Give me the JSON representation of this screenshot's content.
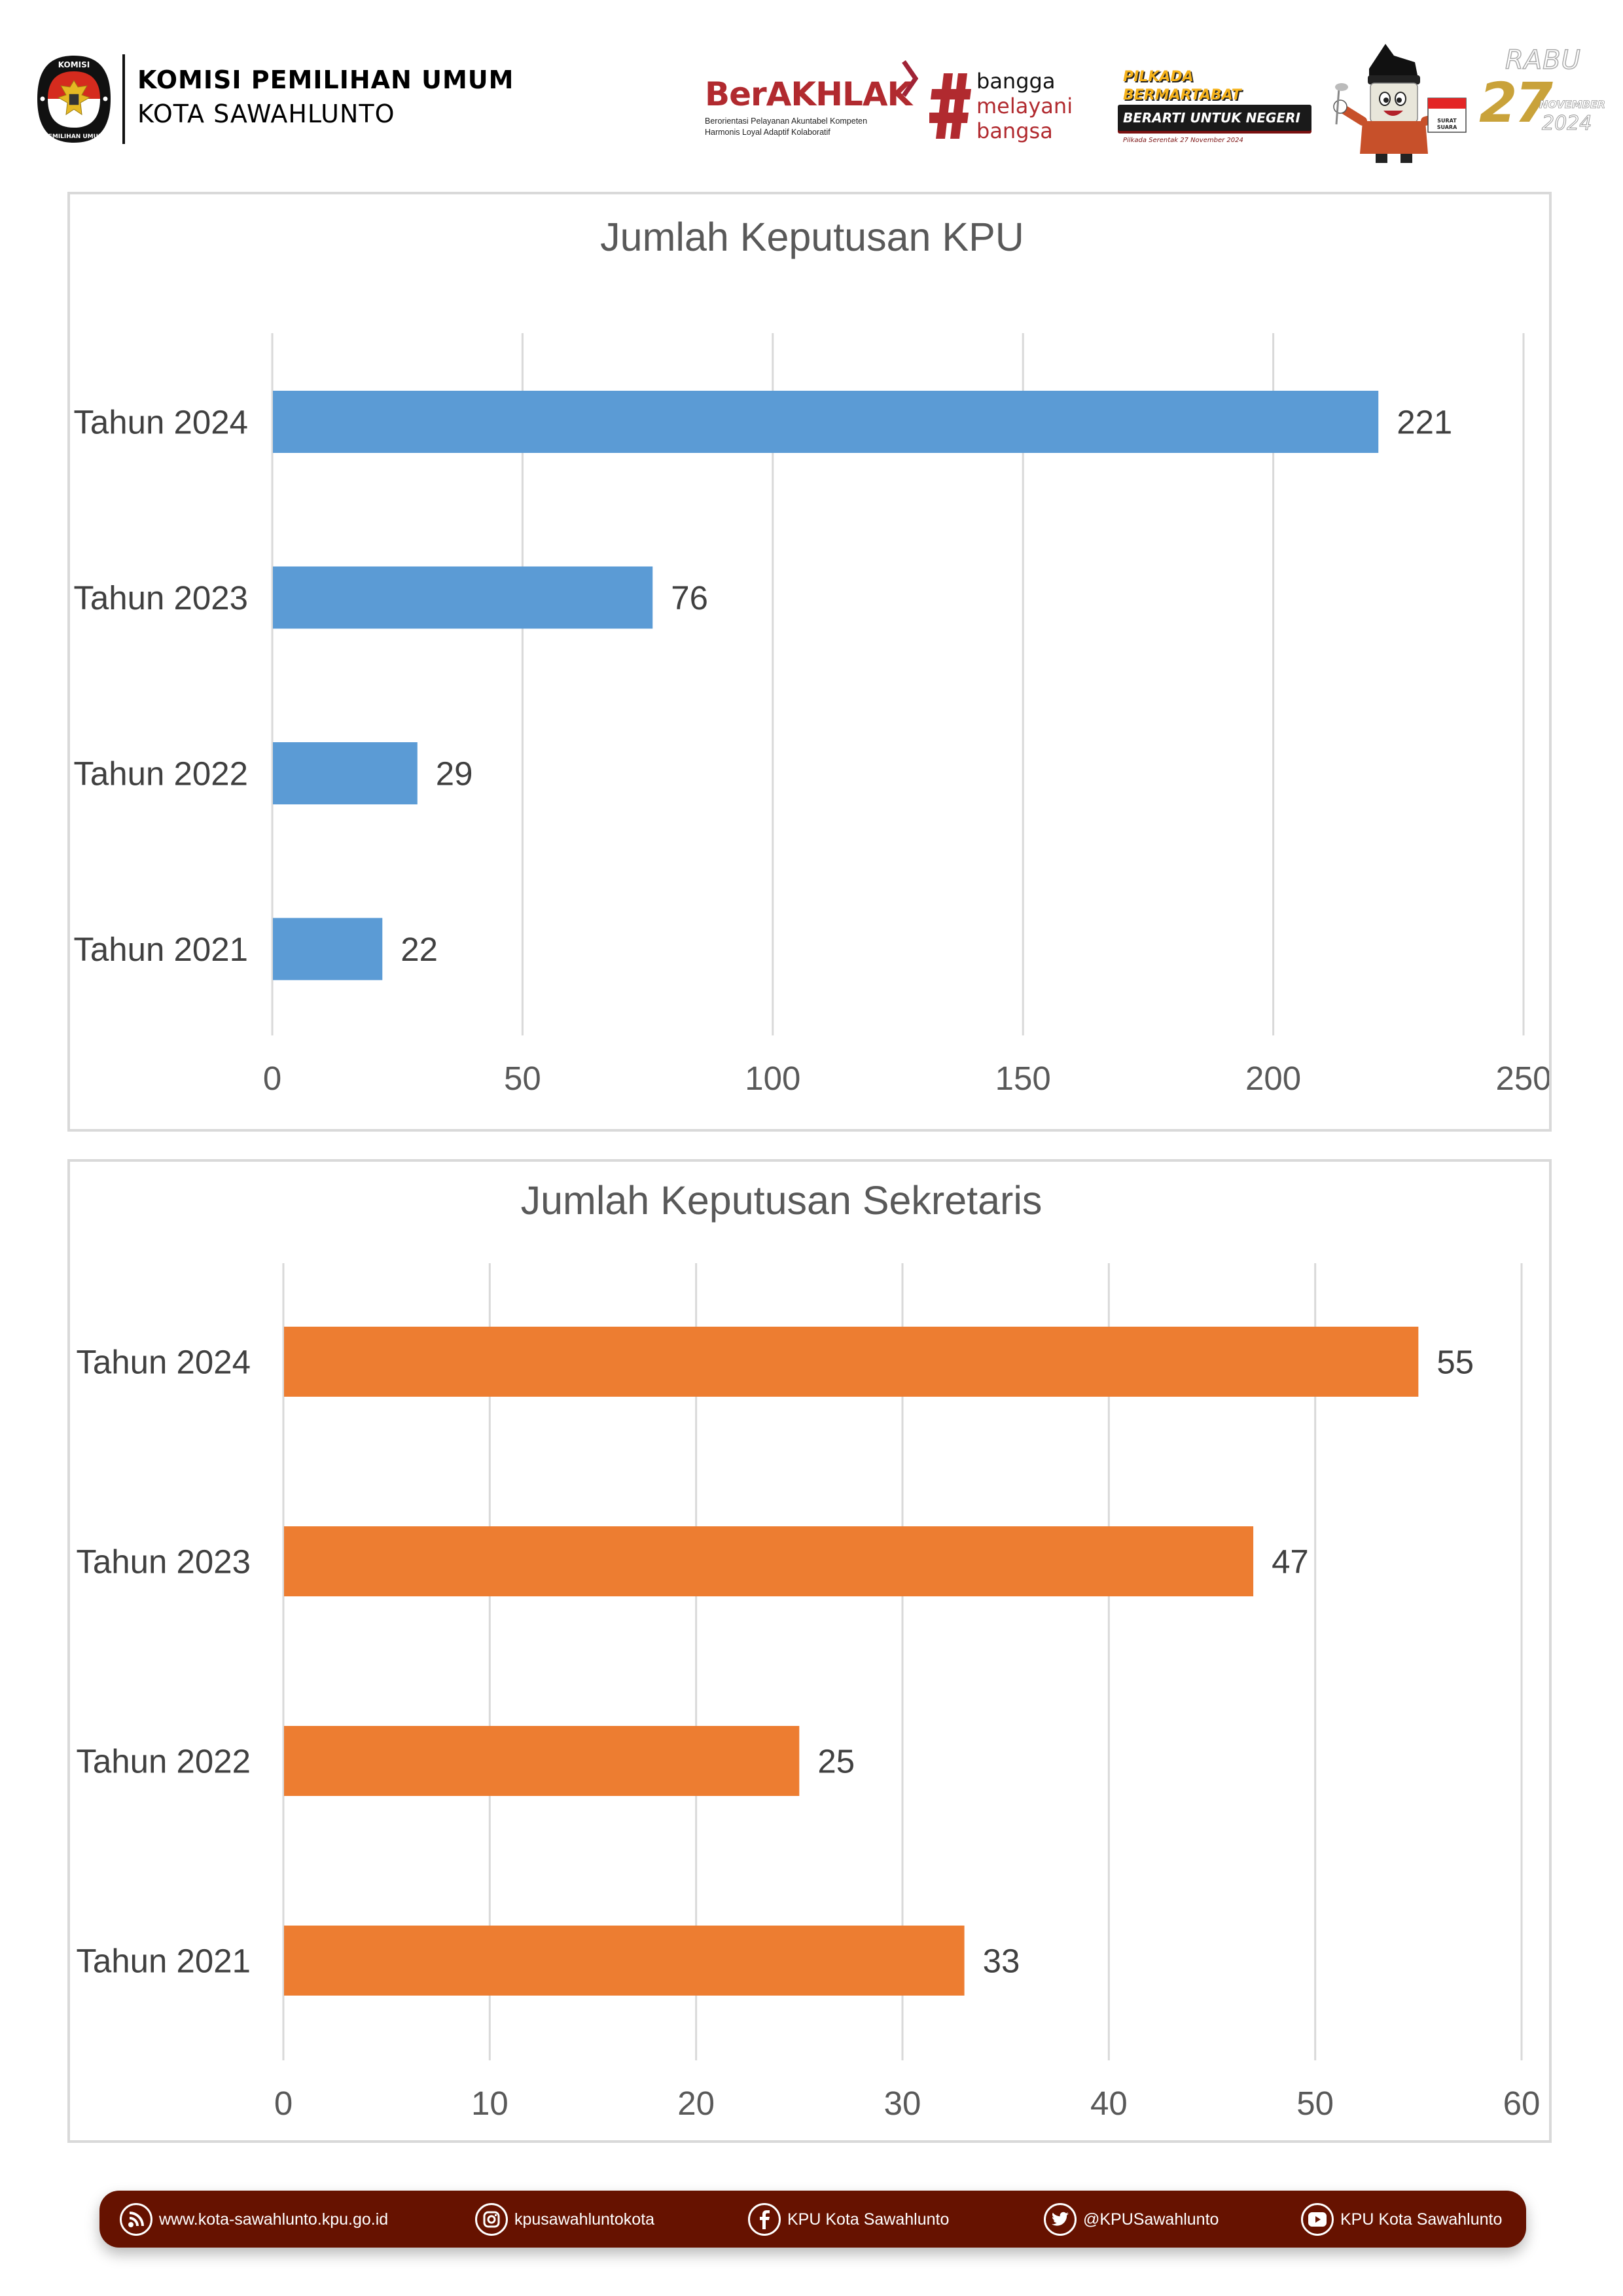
{
  "header": {
    "org_name": "KOMISI PEMILIHAN UMUM",
    "city": "KOTA SAWAHLUNTO",
    "logo": {
      "top_text": "KOMISI",
      "bottom_text": "PEMILIHAN UMUM"
    },
    "berakhlak": {
      "title": "BerAKHLAK",
      "line1": "Berorientasi Pelayanan Akuntabel Kompeten",
      "line2": "Harmonis Loyal Adaptif Kolaboratif"
    },
    "bangga": {
      "hash": "#",
      "word1": "bangga",
      "word2": "melayani",
      "word3": "bangsa"
    },
    "pilkada": {
      "line1": "PILKADA",
      "line2": "BERMARTABAT",
      "line3": "BERARTI UNTUK NEGERI",
      "caption": "Pilkada Serentak 27 November 2024"
    },
    "mascot": {
      "ballot_text": "SURAT SUARA"
    },
    "date_badge": {
      "day": "RABU",
      "date": "27",
      "month": "NOVEMBER",
      "year": "2024"
    }
  },
  "colors": {
    "kpu_bar": "#5B9BD5",
    "sekretaris_bar": "#ED7D31",
    "footer_bg": "#661200",
    "brand_red": "#B12A2F"
  },
  "chart_data": [
    {
      "type": "bar",
      "orientation": "horizontal",
      "title": "Jumlah Keputusan KPU",
      "categories": [
        "Tahun 2024",
        "Tahun 2023",
        "Tahun 2022",
        "Tahun 2021"
      ],
      "values": [
        221,
        76,
        29,
        22
      ],
      "xlim": [
        0,
        250
      ],
      "xticks": [
        0,
        50,
        100,
        150,
        200,
        250
      ],
      "xlabel": "",
      "ylabel": "",
      "grid": true,
      "data_labels": true,
      "color": "#5B9BD5"
    },
    {
      "type": "bar",
      "orientation": "horizontal",
      "title": "Jumlah Keputusan Sekretaris",
      "categories": [
        "Tahun 2024",
        "Tahun 2023",
        "Tahun 2022",
        "Tahun 2021"
      ],
      "values": [
        55,
        47,
        25,
        33
      ],
      "xlim": [
        0,
        60
      ],
      "xticks": [
        0,
        10,
        20,
        30,
        40,
        50,
        60
      ],
      "xlabel": "",
      "ylabel": "",
      "grid": true,
      "data_labels": true,
      "color": "#ED7D31"
    }
  ],
  "footer": {
    "items": [
      {
        "icon": "rss-icon",
        "label": "www.kota-sawahlunto.kpu.go.id"
      },
      {
        "icon": "instagram-icon",
        "label": "kpusawahluntokota"
      },
      {
        "icon": "facebook-icon",
        "label": "KPU Kota Sawahlunto"
      },
      {
        "icon": "twitter-icon",
        "label": "@KPUSawahlunto"
      },
      {
        "icon": "youtube-icon",
        "label": "KPU Kota Sawahlunto"
      }
    ]
  }
}
